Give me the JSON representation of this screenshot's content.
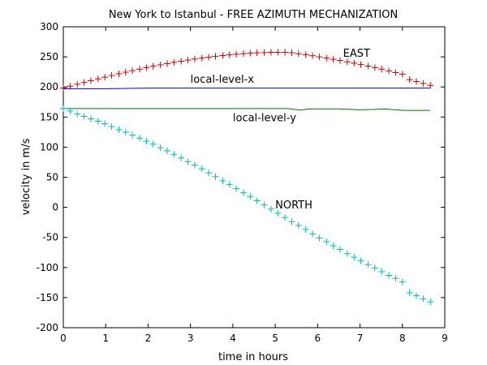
{
  "chart_data": {
    "type": "line",
    "title": "New York to Istanbul - FREE AZIMUTH MECHANIZATION",
    "xlabel": "time in hours",
    "ylabel": "velocity in m/s",
    "xlim": [
      0,
      9
    ],
    "ylim": [
      -200,
      300
    ],
    "xticks": [
      0,
      1,
      2,
      3,
      4,
      5,
      6,
      7,
      8,
      9
    ],
    "yticks": [
      -200,
      -150,
      -100,
      -50,
      0,
      50,
      100,
      150,
      200,
      250,
      300
    ],
    "grid": false,
    "annotations": [
      {
        "text": "EAST",
        "x": 6.6,
        "y": 250
      },
      {
        "text": "local-level-x",
        "x": 3.0,
        "y": 207
      },
      {
        "text": "local-level-y",
        "x": 4.0,
        "y": 143
      },
      {
        "text": "NORTH",
        "x": 5.0,
        "y": -2
      }
    ],
    "series": [
      {
        "name": "",
        "style": "markers",
        "marker": "+",
        "color": "#cc0000",
        "x": [
          0.0,
          0.16,
          0.33,
          0.49,
          0.65,
          0.82,
          0.98,
          1.14,
          1.31,
          1.47,
          1.63,
          1.8,
          1.96,
          2.12,
          2.29,
          2.45,
          2.61,
          2.78,
          2.94,
          3.1,
          3.27,
          3.43,
          3.59,
          3.76,
          3.92,
          4.08,
          4.25,
          4.41,
          4.57,
          4.74,
          4.9,
          5.06,
          5.23,
          5.39,
          5.55,
          5.72,
          5.88,
          6.04,
          6.21,
          6.37,
          6.53,
          6.7,
          6.86,
          7.02,
          7.19,
          7.35,
          7.51,
          7.68,
          7.84,
          8.0,
          8.17,
          8.33,
          8.49,
          8.66
        ],
        "y": [
          198.0,
          201.2,
          204.4,
          207.4,
          210.5,
          213.4,
          216.3,
          219.1,
          221.9,
          224.5,
          227.1,
          229.6,
          232.1,
          234.4,
          236.6,
          238.8,
          240.8,
          242.8,
          244.6,
          246.4,
          248.0,
          249.5,
          250.9,
          252.2,
          253.4,
          254.4,
          255.3,
          256.1,
          256.7,
          257.1,
          257.5,
          257.6,
          257.6,
          256.8,
          255.2,
          253.5,
          251.8,
          250.0,
          248.0,
          246.0,
          243.9,
          241.7,
          239.5,
          237.1,
          234.7,
          232.1,
          229.5,
          226.7,
          223.9,
          221.0,
          212.0,
          209.0,
          205.9,
          202.7
        ]
      },
      {
        "name": "",
        "style": "line",
        "color": "#0000cc",
        "x": [
          0.0,
          0.5,
          1.0,
          1.5,
          2.0,
          2.5,
          3.0,
          3.5,
          4.0,
          4.5,
          5.0,
          5.5,
          6.0,
          6.5,
          7.0,
          7.5,
          8.0,
          8.65
        ],
        "y": [
          197.0,
          197.0,
          197.0,
          197.5,
          198.0,
          198.0,
          198.0,
          198.0,
          198.0,
          198.0,
          198.0,
          198.0,
          198.0,
          198.0,
          198.0,
          198.0,
          198.0,
          198.0
        ]
      },
      {
        "name": "",
        "style": "line",
        "color": "#007700",
        "x": [
          0.0,
          0.5,
          1.0,
          1.5,
          2.0,
          2.5,
          3.0,
          3.5,
          4.0,
          4.5,
          5.0,
          5.3,
          5.6,
          5.8,
          6.0,
          6.5,
          7.0,
          7.3,
          7.6,
          8.0,
          8.65
        ],
        "y": [
          164.0,
          164.0,
          164.0,
          164.0,
          164.0,
          164.0,
          164.0,
          164.0,
          164.0,
          164.0,
          164.0,
          164.0,
          161.5,
          163.5,
          163.5,
          163.5,
          162.0,
          162.5,
          163.5,
          161.0,
          161.0
        ]
      },
      {
        "name": "",
        "style": "markers",
        "marker": "+",
        "color": "#00bbbb",
        "x": [
          0.0,
          0.16,
          0.33,
          0.49,
          0.65,
          0.82,
          0.98,
          1.14,
          1.31,
          1.47,
          1.63,
          1.8,
          1.96,
          2.12,
          2.29,
          2.45,
          2.61,
          2.78,
          2.94,
          3.1,
          3.27,
          3.43,
          3.59,
          3.76,
          3.92,
          4.08,
          4.25,
          4.41,
          4.57,
          4.74,
          4.9,
          5.06,
          5.23,
          5.39,
          5.55,
          5.72,
          5.88,
          6.04,
          6.21,
          6.37,
          6.53,
          6.7,
          6.86,
          7.02,
          7.19,
          7.35,
          7.51,
          7.68,
          7.84,
          8.0,
          8.17,
          8.33,
          8.49,
          8.66
        ],
        "y": [
          164.0,
          160.0,
          155.0,
          151.0,
          147.0,
          143.0,
          139.0,
          134.0,
          129.0,
          125.0,
          120.0,
          115.0,
          110.0,
          105.0,
          99.0,
          94.0,
          88.0,
          82.0,
          76.0,
          70.0,
          64.0,
          57.0,
          51.0,
          44.0,
          38.0,
          31.0,
          24.0,
          18.0,
          11.0,
          4.0,
          -3.0,
          -10.0,
          -17.0,
          -24.0,
          -30.0,
          -37.0,
          -44.0,
          -51.0,
          -57.0,
          -64.0,
          -70.0,
          -77.0,
          -83.0,
          -89.0,
          -95.0,
          -101.0,
          -107.0,
          -113.0,
          -118.0,
          -124.0,
          -142.0,
          -147.0,
          -152.0,
          -157.0
        ]
      }
    ]
  }
}
